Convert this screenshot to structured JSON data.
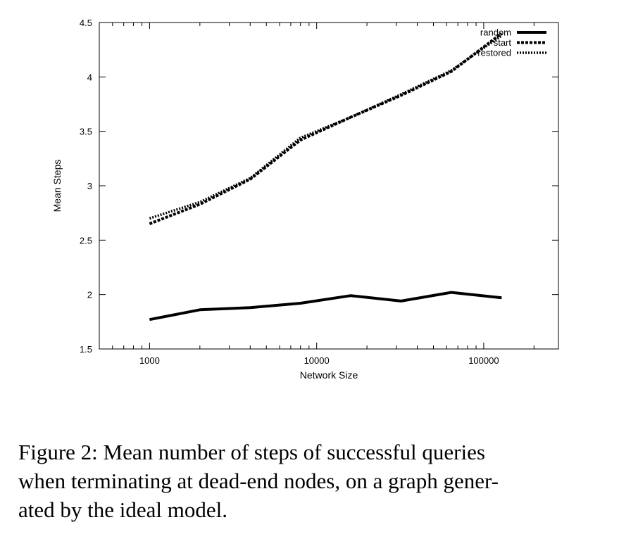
{
  "chart_data": {
    "type": "line",
    "xscale": "log",
    "xlim": [
      500,
      280000
    ],
    "ylim": [
      1.5,
      4.5
    ],
    "xlabel": "Network Size",
    "ylabel": "Mean Steps",
    "xticks": [
      {
        "value": 1000,
        "label": "1000"
      },
      {
        "value": 10000,
        "label": "10000"
      },
      {
        "value": 100000,
        "label": "100000"
      }
    ],
    "yticks": [
      {
        "value": 1.5,
        "label": "1.5"
      },
      {
        "value": 2,
        "label": "2"
      },
      {
        "value": 2.5,
        "label": "2.5"
      },
      {
        "value": 3,
        "label": "3"
      },
      {
        "value": 3.5,
        "label": "3.5"
      },
      {
        "value": 4,
        "label": "4"
      },
      {
        "value": 4.5,
        "label": "4.5"
      }
    ],
    "legend_position": "top-right",
    "series": [
      {
        "name": "random",
        "style": "solid",
        "x": [
          1000,
          2000,
          4000,
          8000,
          16000,
          32000,
          64000,
          128000
        ],
        "y": [
          1.77,
          1.86,
          1.88,
          1.92,
          1.99,
          1.94,
          2.02,
          1.97
        ]
      },
      {
        "name": "start",
        "style": "dashed",
        "x": [
          1000,
          2000,
          4000,
          8000,
          16000,
          32000,
          64000,
          128000
        ],
        "y": [
          2.65,
          2.83,
          3.06,
          3.42,
          3.63,
          3.83,
          4.05,
          4.4
        ]
      },
      {
        "name": "restored",
        "style": "dotted",
        "x": [
          1000,
          2000,
          4000,
          8000,
          16000,
          32000,
          64000,
          128000
        ],
        "y": [
          2.7,
          2.85,
          3.07,
          3.44,
          3.63,
          3.84,
          4.06,
          4.38
        ]
      }
    ]
  },
  "caption": "Figure 2:  Mean number of steps of successful queries\nwhen terminating at dead-end nodes, on a graph gener-\nated by the ideal model."
}
